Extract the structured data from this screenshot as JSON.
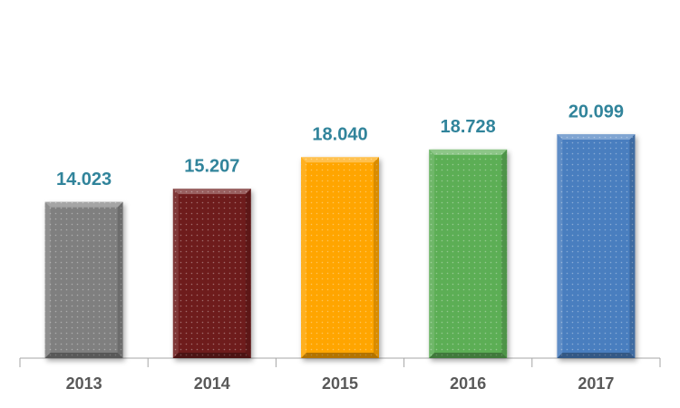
{
  "chart_data": {
    "type": "bar",
    "categories": [
      "2013",
      "2014",
      "2015",
      "2016",
      "2017"
    ],
    "values": [
      14.023,
      15.207,
      18.04,
      18.728,
      20.099
    ],
    "value_labels": [
      "14.023",
      "15.207",
      "18.040",
      "18.728",
      "20.099"
    ],
    "colors": [
      "#7f7f7f",
      "#6e1f1f",
      "#ffa500",
      "#5cae55",
      "#4a7ebf"
    ]
  }
}
